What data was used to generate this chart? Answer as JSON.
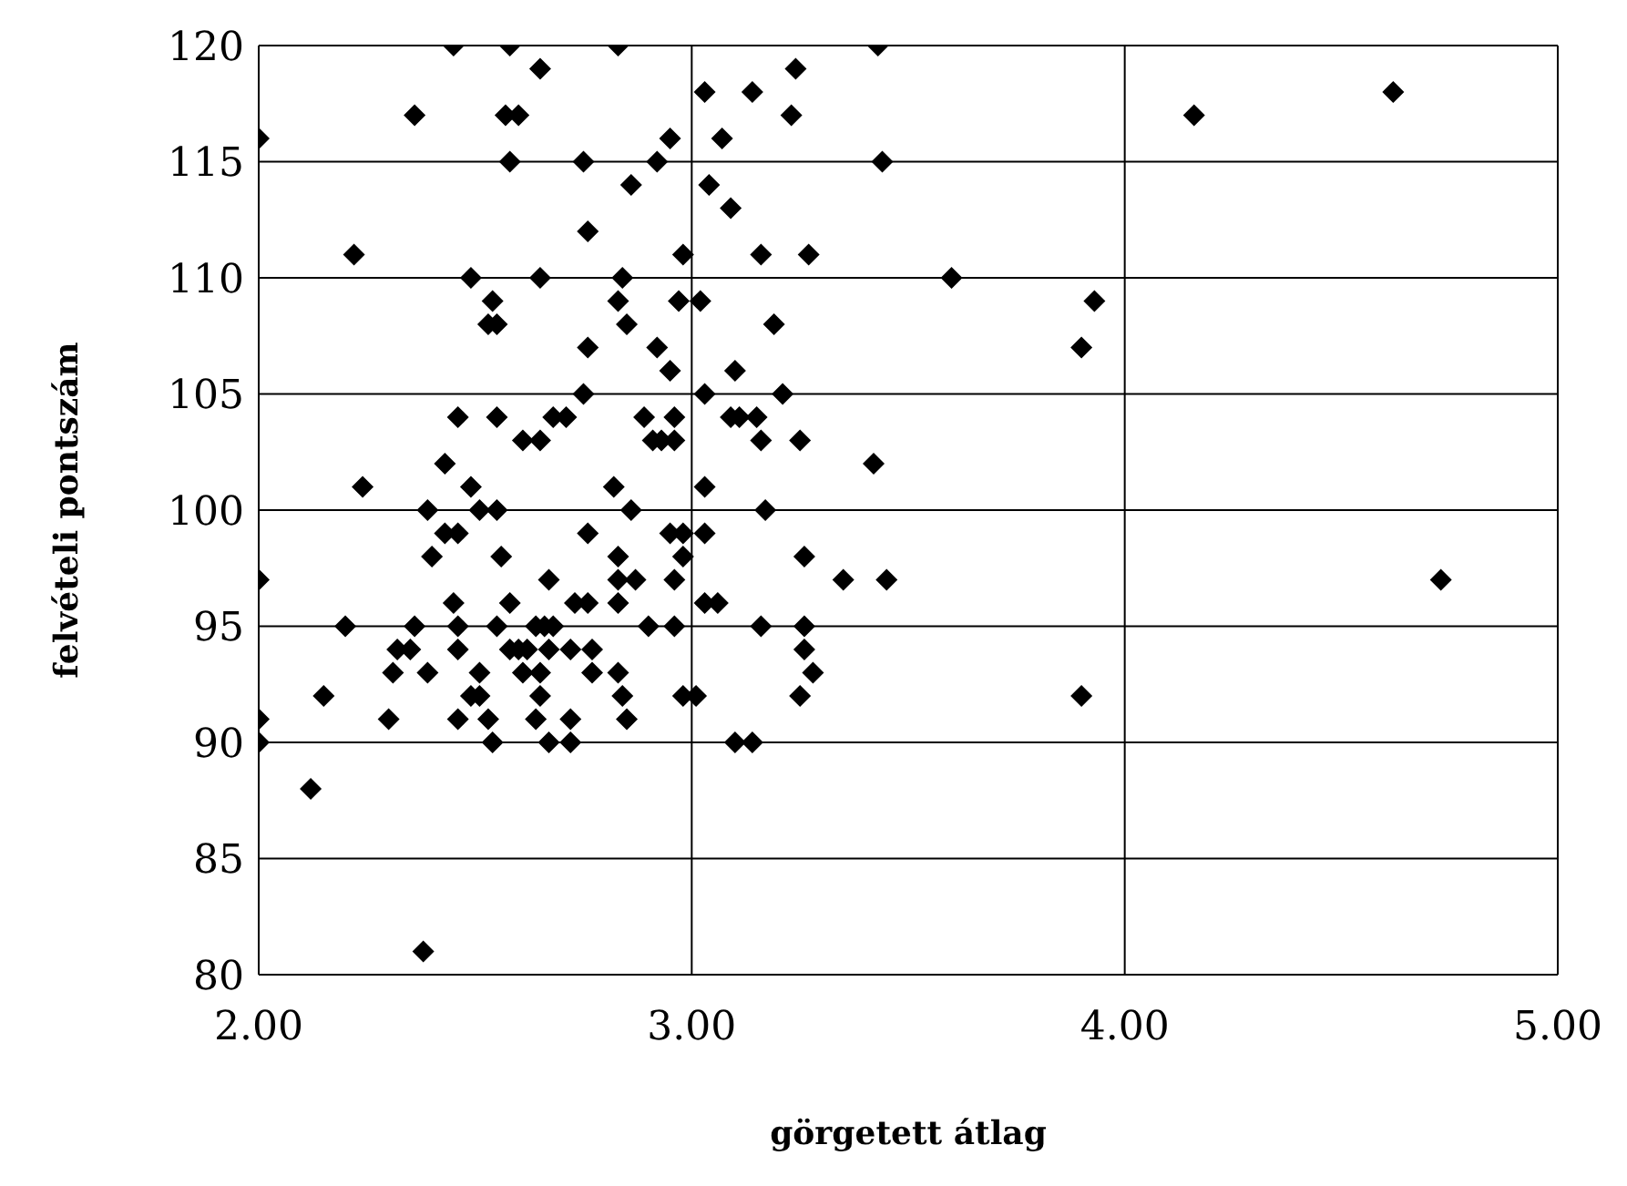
{
  "chart_data": {
    "type": "scatter",
    "xlabel": "görgetett átlag",
    "ylabel": "felvételi pontszám",
    "x": [
      2.45,
      2.58,
      2.83,
      3.43,
      2.65,
      3.24,
      3.03,
      3.14,
      4.62,
      2.36,
      2.57,
      2.6,
      3.23,
      4.16,
      2.0,
      2.95,
      3.07,
      2.58,
      2.75,
      2.92,
      3.44,
      2.86,
      3.04,
      3.09,
      2.76,
      2.22,
      2.98,
      3.16,
      3.27,
      2.49,
      2.65,
      2.84,
      3.6,
      2.54,
      2.83,
      2.97,
      3.02,
      3.93,
      2.53,
      2.55,
      2.85,
      3.19,
      2.76,
      2.92,
      3.9,
      2.95,
      3.1,
      2.75,
      3.03,
      3.21,
      2.46,
      2.55,
      2.68,
      2.71,
      2.89,
      2.96,
      3.09,
      3.11,
      3.15,
      2.61,
      2.65,
      2.91,
      2.93,
      2.96,
      3.16,
      3.25,
      2.43,
      3.42,
      2.24,
      2.49,
      2.82,
      3.03,
      2.39,
      2.51,
      2.55,
      2.86,
      3.17,
      2.43,
      2.46,
      2.76,
      2.95,
      2.98,
      3.03,
      2.4,
      2.56,
      2.83,
      2.98,
      3.26,
      2.0,
      2.67,
      2.83,
      2.87,
      2.96,
      3.35,
      3.45,
      4.73,
      2.45,
      2.58,
      2.73,
      2.76,
      2.83,
      3.03,
      3.06,
      2.2,
      2.36,
      2.46,
      2.55,
      2.64,
      2.66,
      2.68,
      2.9,
      2.96,
      3.16,
      3.26,
      2.32,
      2.35,
      2.46,
      2.58,
      2.6,
      2.62,
      2.67,
      2.72,
      2.77,
      3.26,
      2.31,
      2.39,
      2.51,
      2.61,
      2.65,
      2.77,
      2.83,
      3.28,
      2.15,
      2.49,
      2.51,
      2.65,
      2.84,
      2.98,
      3.01,
      3.25,
      3.9,
      2.0,
      2.3,
      2.46,
      2.53,
      2.64,
      2.72,
      2.85,
      2.0,
      2.54,
      2.67,
      2.72,
      3.1,
      3.14,
      2.12,
      2.38
    ],
    "values": [
      120,
      120,
      120,
      120,
      119,
      119,
      118,
      118,
      118,
      117,
      117,
      117,
      117,
      117,
      116,
      116,
      116,
      115,
      115,
      115,
      115,
      114,
      114,
      113,
      112,
      111,
      111,
      111,
      111,
      110,
      110,
      110,
      110,
      109,
      109,
      109,
      109,
      109,
      108,
      108,
      108,
      108,
      107,
      107,
      107,
      106,
      106,
      105,
      105,
      105,
      104,
      104,
      104,
      104,
      104,
      104,
      104,
      104,
      104,
      103,
      103,
      103,
      103,
      103,
      103,
      103,
      102,
      102,
      101,
      101,
      101,
      101,
      100,
      100,
      100,
      100,
      100,
      99,
      99,
      99,
      99,
      99,
      99,
      98,
      98,
      98,
      98,
      98,
      97,
      97,
      97,
      97,
      97,
      97,
      97,
      97,
      96,
      96,
      96,
      96,
      96,
      96,
      96,
      95,
      95,
      95,
      95,
      95,
      95,
      95,
      95,
      95,
      95,
      95,
      94,
      94,
      94,
      94,
      94,
      94,
      94,
      94,
      94,
      94,
      93,
      93,
      93,
      93,
      93,
      93,
      93,
      93,
      92,
      92,
      92,
      92,
      92,
      92,
      92,
      92,
      92,
      91,
      91,
      91,
      91,
      91,
      91,
      91,
      90,
      90,
      90,
      90,
      90,
      90,
      88,
      81
    ],
    "color": "#000000",
    "marker": "diamond",
    "xlim": [
      2,
      5
    ],
    "xticks": [
      {
        "value": 2,
        "label": "2.00"
      },
      {
        "value": 3,
        "label": "3.00"
      },
      {
        "value": 4,
        "label": "4.00"
      },
      {
        "value": 5,
        "label": "5.00"
      }
    ],
    "ylim": [
      80,
      120
    ],
    "yticks": [
      80,
      85,
      90,
      95,
      100,
      105,
      110,
      115,
      120
    ],
    "grid": true
  }
}
